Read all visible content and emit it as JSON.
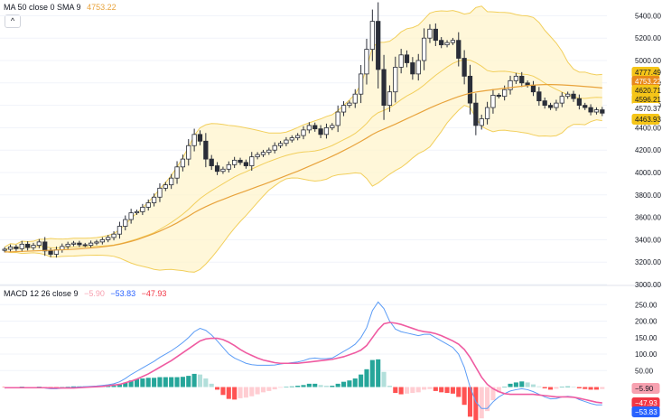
{
  "ma_legend": {
    "label": "MA 50 close 0 SMA 9",
    "value": "4753.22",
    "value_color": "#e8a33c",
    "collapse_icon": "chevron-up-icon"
  },
  "macd_legend": {
    "label": "MACD 12 26 close 9",
    "hist_value": "−5.90",
    "hist_color": "#f7a1b0",
    "macd_value": "−53.83",
    "macd_color": "#2962ff",
    "signal_value": "−47.93",
    "signal_color": "#f23645"
  },
  "chart_data": [
    {
      "type": "candlestick",
      "title": "",
      "ylim": [
        3000,
        5500
      ],
      "y_ticks": [
        "5400.00",
        "5200.00",
        "5000.00",
        "4800.00",
        "4600.00",
        "4400.00",
        "4200.00",
        "4000.00",
        "3800.00",
        "3600.00",
        "3400.00",
        "3200.00",
        "3000.00"
      ],
      "price_tags": [
        {
          "label": "4777.49",
          "bg": "#f5c518",
          "fg": "#131722"
        },
        {
          "label": "4753.22",
          "bg": "#e8891a",
          "fg": "#ffffff"
        },
        {
          "label": "4620.71",
          "bg": "#f5c518",
          "fg": "#131722"
        },
        {
          "label": "4596.21",
          "bg": "#f5c518",
          "fg": "#131722"
        },
        {
          "label": "4570.37",
          "bg": "#ffffff",
          "fg": "#131722"
        },
        {
          "label": "4463.93",
          "bg": "#f5c518",
          "fg": "#131722"
        }
      ],
      "close": [
        3315,
        3335,
        3320,
        3360,
        3330,
        3350,
        3380,
        3300,
        3270,
        3310,
        3340,
        3360,
        3370,
        3355,
        3350,
        3370,
        3380,
        3400,
        3420,
        3450,
        3520,
        3580,
        3640,
        3650,
        3690,
        3730,
        3780,
        3860,
        3890,
        3950,
        4050,
        4120,
        4240,
        4340,
        4280,
        4120,
        4060,
        4010,
        4030,
        4070,
        4110,
        4090,
        4060,
        4140,
        4160,
        4180,
        4200,
        4240,
        4260,
        4290,
        4310,
        4330,
        4380,
        4420,
        4390,
        4340,
        4400,
        4420,
        4540,
        4600,
        4620,
        4700,
        4880,
        5100,
        5350,
        4920,
        4600,
        4720,
        4940,
        5050,
        4980,
        4880,
        5000,
        5200,
        5280,
        5180,
        5140,
        5160,
        5180,
        5020,
        4860,
        4620,
        4420,
        4480,
        4580,
        4690,
        4680,
        4740,
        4820,
        4860,
        4800,
        4780,
        4720,
        4640,
        4600,
        4580,
        4620,
        4680,
        4700,
        4660,
        4600,
        4580,
        4540,
        4560,
        4530
      ],
      "series": [
        {
          "name": "MA 50",
          "color": "#e8a33c",
          "values": [
            3290,
            3292,
            3294,
            3296,
            3298,
            3300,
            3302,
            3304,
            3306,
            3308,
            3310,
            3312,
            3315,
            3318,
            3322,
            3326,
            3330,
            3336,
            3342,
            3350,
            3360,
            3372,
            3385,
            3400,
            3418,
            3436,
            3455,
            3476,
            3500,
            3524,
            3550,
            3580,
            3610,
            3642,
            3670,
            3695,
            3718,
            3740,
            3760,
            3780,
            3800,
            3818,
            3836,
            3855,
            3874,
            3893,
            3912,
            3932,
            3952,
            3972,
            3992,
            4012,
            4034,
            4056,
            4078,
            4100,
            4122,
            4146,
            4170,
            4196,
            4222,
            4250,
            4278,
            4308,
            4340,
            4366,
            4388,
            4410,
            4432,
            4456,
            4480,
            4504,
            4528,
            4552,
            4576,
            4598,
            4620,
            4640,
            4660,
            4678,
            4694,
            4708,
            4718,
            4726,
            4733,
            4740,
            4746,
            4752,
            4758,
            4764,
            4770,
            4776,
            4780,
            4783,
            4785,
            4785,
            4784,
            4782,
            4779,
            4776,
            4772,
            4768,
            4764,
            4760,
            4755
          ]
        }
      ]
    },
    {
      "type": "bar",
      "title": "",
      "ylim": [
        -100,
        270
      ],
      "y_ticks": [
        "250.00",
        "200.00",
        "150.00",
        "100.00",
        "50.00"
      ],
      "value_tags": [
        {
          "label": "−5.90",
          "bg": "#f7a1b0",
          "fg": "#131722"
        },
        {
          "label": "−47.93",
          "bg": "#f23645",
          "fg": "#ffffff"
        },
        {
          "label": "−53.83",
          "bg": "#2962ff",
          "fg": "#ffffff"
        }
      ],
      "series": [
        {
          "name": "MACD",
          "color": "#5b9cf6",
          "values": [
            -3,
            -2,
            -2,
            -1,
            -2,
            -2,
            -1,
            -3,
            -5,
            -5,
            -3,
            -2,
            -1,
            0,
            1,
            2,
            3,
            5,
            7,
            10,
            16,
            26,
            38,
            48,
            58,
            68,
            78,
            90,
            100,
            110,
            122,
            135,
            150,
            168,
            178,
            172,
            158,
            140,
            120,
            100,
            88,
            80,
            72,
            68,
            66,
            66,
            66,
            67,
            70,
            72,
            74,
            76,
            80,
            86,
            88,
            86,
            86,
            88,
            98,
            108,
            118,
            130,
            150,
            180,
            232,
            258,
            238,
            200,
            176,
            168,
            164,
            160,
            156,
            160,
            160,
            150,
            140,
            130,
            120,
            100,
            60,
            0,
            -45,
            -65,
            -65,
            -45,
            -30,
            -20,
            -12,
            -8,
            -5,
            -8,
            -14,
            -22,
            -30,
            -36,
            -35,
            -30,
            -28,
            -30,
            -38,
            -44,
            -50,
            -54,
            -54
          ]
        },
        {
          "name": "Signal",
          "color": "#f23645",
          "values": [
            -2,
            -2,
            -2,
            -2,
            -2,
            -2,
            -2,
            -2,
            -3,
            -3,
            -3,
            -3,
            -3,
            -2,
            -1,
            0,
            1,
            2,
            4,
            6,
            8,
            13,
            18,
            24,
            32,
            40,
            50,
            60,
            70,
            80,
            92,
            104,
            116,
            128,
            140,
            146,
            148,
            148,
            144,
            136,
            126,
            114,
            104,
            96,
            88,
            82,
            78,
            74,
            72,
            72,
            72,
            72,
            74,
            76,
            78,
            80,
            82,
            84,
            88,
            92,
            98,
            104,
            112,
            126,
            150,
            174,
            192,
            196,
            194,
            190,
            184,
            178,
            172,
            168,
            166,
            162,
            156,
            148,
            140,
            130,
            114,
            90,
            60,
            30,
            8,
            -5,
            -14,
            -20,
            -22,
            -22,
            -22,
            -22,
            -22,
            -24,
            -26,
            -28,
            -30,
            -30,
            -30,
            -31,
            -34,
            -38,
            -42,
            -46,
            -48
          ]
        },
        {
          "name": "Histogram",
          "color": "#26a69a",
          "values": [
            -1,
            0,
            0,
            1,
            0,
            0,
            1,
            -1,
            -2,
            -2,
            0,
            1,
            2,
            2,
            2,
            2,
            2,
            3,
            3,
            4,
            8,
            13,
            20,
            24,
            26,
            28,
            28,
            30,
            30,
            30,
            30,
            31,
            34,
            40,
            38,
            26,
            10,
            -8,
            -24,
            -36,
            -38,
            -34,
            -32,
            -28,
            -22,
            -16,
            -12,
            -7,
            -2,
            0,
            2,
            4,
            6,
            10,
            10,
            6,
            4,
            4,
            10,
            16,
            20,
            26,
            38,
            54,
            82,
            84,
            46,
            4,
            -18,
            -22,
            -20,
            -18,
            -16,
            -8,
            -6,
            -12,
            -16,
            -18,
            -20,
            -30,
            -54,
            -90,
            -105,
            -95,
            -73,
            -40,
            -16,
            0,
            10,
            14,
            17,
            14,
            8,
            2,
            -4,
            -8,
            -5,
            0,
            2,
            1,
            -4,
            -6,
            -8,
            -8,
            -6
          ]
        }
      ]
    }
  ]
}
